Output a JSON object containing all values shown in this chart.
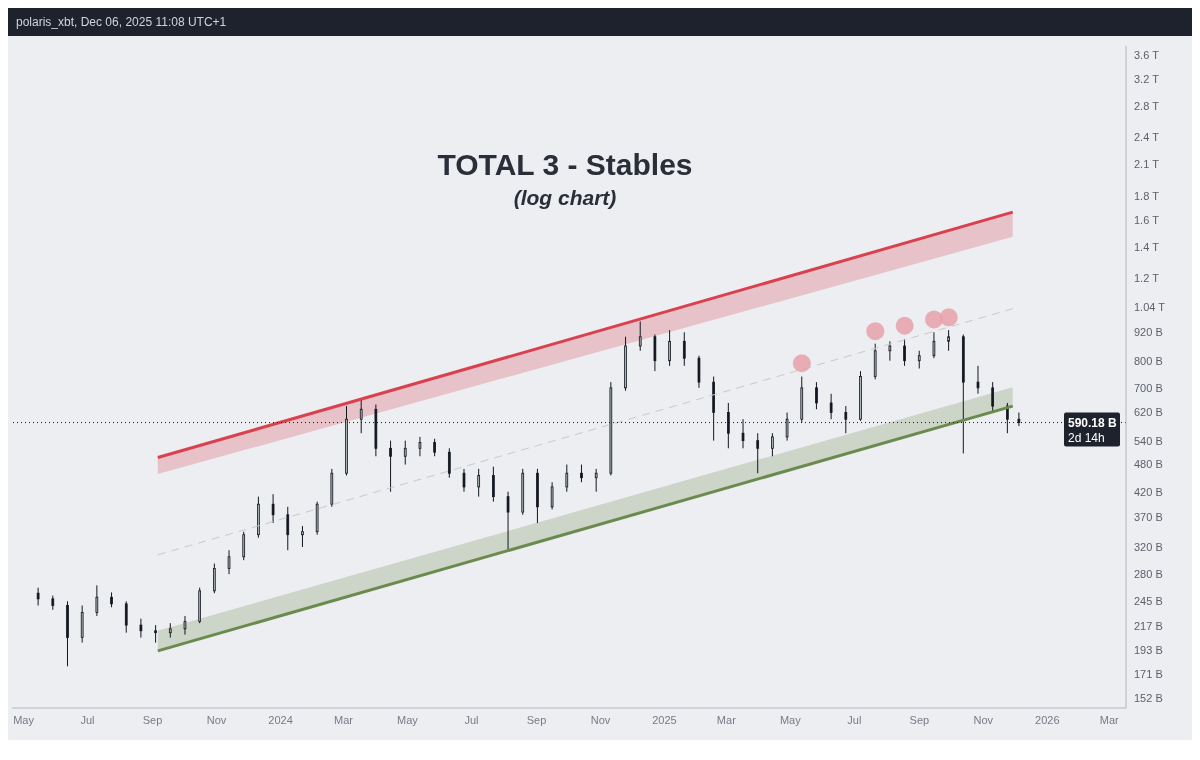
{
  "chart_data": {
    "type": "candlestick",
    "title": "TOTAL 3 - Stables",
    "subtitle": "(log chart)",
    "annotations": [
      "polaris_xbt, Dec 06, 2025 11:08 UTC+1",
      "2d 14h"
    ],
    "log": "y",
    "color": "#131722",
    "x": [
      "2023-05-15",
      "2023-05-29",
      "2023-06-12",
      "2023-06-26",
      "2023-07-10",
      "2023-07-24",
      "2023-08-07",
      "2023-08-21",
      "2023-09-04",
      "2023-09-18",
      "2023-10-02",
      "2023-10-16",
      "2023-10-30",
      "2023-11-13",
      "2023-11-27",
      "2023-12-11",
      "2023-12-25",
      "2024-01-08",
      "2024-01-22",
      "2024-02-05",
      "2024-02-19",
      "2024-03-04",
      "2024-03-18",
      "2024-04-01",
      "2024-04-15",
      "2024-04-29",
      "2024-05-13",
      "2024-05-27",
      "2024-06-10",
      "2024-06-24",
      "2024-07-08",
      "2024-07-22",
      "2024-08-05",
      "2024-08-19",
      "2024-09-02",
      "2024-09-16",
      "2024-09-30",
      "2024-10-14",
      "2024-10-28",
      "2024-11-11",
      "2024-11-25",
      "2024-12-09",
      "2024-12-23",
      "2025-01-06",
      "2025-01-20",
      "2025-02-03",
      "2025-02-17",
      "2025-03-03",
      "2025-03-17",
      "2025-03-31",
      "2025-04-14",
      "2025-04-28",
      "2025-05-12",
      "2025-05-26",
      "2025-06-09",
      "2025-06-23",
      "2025-07-07",
      "2025-07-21",
      "2025-08-04",
      "2025-08-18",
      "2025-09-01",
      "2025-09-15",
      "2025-09-29",
      "2025-10-13",
      "2025-10-27",
      "2025-11-10",
      "2025-11-24",
      "2025-12-05"
    ],
    "ohlc": [
      [
        255000000000.0,
        262000000000.0,
        240000000000.0,
        248000000000.0
      ],
      [
        248000000000.0,
        252000000000.0,
        235000000000.0,
        240000000000.0
      ],
      [
        240000000000.0,
        245000000000.0,
        178000000000.0,
        205000000000.0
      ],
      [
        205000000000.0,
        240000000000.0,
        200000000000.0,
        232000000000.0
      ],
      [
        232000000000.0,
        265000000000.0,
        228000000000.0,
        250000000000.0
      ],
      [
        250000000000.0,
        256000000000.0,
        238000000000.0,
        242000000000.0
      ],
      [
        242000000000.0,
        245000000000.0,
        210000000000.0,
        218000000000.0
      ],
      [
        218000000000.0,
        225000000000.0,
        205000000000.0,
        212000000000.0
      ],
      [
        212000000000.0,
        218000000000.0,
        200000000000.0,
        210000000000.0
      ],
      [
        210000000000.0,
        220000000000.0,
        205000000000.0,
        214000000000.0
      ],
      [
        214000000000.0,
        228000000000.0,
        208000000000.0,
        222000000000.0
      ],
      [
        222000000000.0,
        262000000000.0,
        220000000000.0,
        258000000000.0
      ],
      [
        258000000000.0,
        295000000000.0,
        255000000000.0,
        288000000000.0
      ],
      [
        288000000000.0,
        315000000000.0,
        280000000000.0,
        305000000000.0
      ],
      [
        305000000000.0,
        345000000000.0,
        300000000000.0,
        340000000000.0
      ],
      [
        340000000000.0,
        410000000000.0,
        335000000000.0,
        395000000000.0
      ],
      [
        395000000000.0,
        415000000000.0,
        360000000000.0,
        375000000000.0
      ],
      [
        375000000000.0,
        390000000000.0,
        315000000000.0,
        340000000000.0
      ],
      [
        340000000000.0,
        355000000000.0,
        320000000000.0,
        345000000000.0
      ],
      [
        345000000000.0,
        400000000000.0,
        340000000000.0,
        395000000000.0
      ],
      [
        395000000000.0,
        470000000000.0,
        390000000000.0,
        460000000000.0
      ],
      [
        460000000000.0,
        640000000000.0,
        455000000000.0,
        600000000000.0
      ],
      [
        600000000000.0,
        660000000000.0,
        560000000000.0,
        630000000000.0
      ],
      [
        630000000000.0,
        645000000000.0,
        500000000000.0,
        520000000000.0
      ],
      [
        520000000000.0,
        540000000000.0,
        420000000000.0,
        500000000000.0
      ],
      [
        500000000000.0,
        540000000000.0,
        480000000000.0,
        520000000000.0
      ],
      [
        520000000000.0,
        550000000000.0,
        500000000000.0,
        535000000000.0
      ],
      [
        535000000000.0,
        545000000000.0,
        500000000000.0,
        510000000000.0
      ],
      [
        510000000000.0,
        520000000000.0,
        450000000000.0,
        460000000000.0
      ],
      [
        460000000000.0,
        470000000000.0,
        420000000000.0,
        430000000000.0
      ],
      [
        430000000000.0,
        470000000000.0,
        410000000000.0,
        455000000000.0
      ],
      [
        455000000000.0,
        475000000000.0,
        400000000000.0,
        410000000000.0
      ],
      [
        410000000000.0,
        420000000000.0,
        316000000000.0,
        380000000000.0
      ],
      [
        380000000000.0,
        470000000000.0,
        375000000000.0,
        460000000000.0
      ],
      [
        460000000000.0,
        470000000000.0,
        360000000000.0,
        390000000000.0
      ],
      [
        390000000000.0,
        440000000000.0,
        385000000000.0,
        430000000000.0
      ],
      [
        430000000000.0,
        480000000000.0,
        420000000000.0,
        460000000000.0
      ],
      [
        460000000000.0,
        480000000000.0,
        440000000000.0,
        450000000000.0
      ],
      [
        450000000000.0,
        470000000000.0,
        420000000000.0,
        460000000000.0
      ],
      [
        460000000000.0,
        720000000000.0,
        455000000000.0,
        700000000000.0
      ],
      [
        700000000000.0,
        900000000000.0,
        690000000000.0,
        860000000000.0
      ],
      [
        860000000000.0,
        970000000000.0,
        840000000000.0,
        900000000000.0
      ],
      [
        900000000000.0,
        910000000000.0,
        760000000000.0,
        800000000000.0
      ],
      [
        800000000000.0,
        930000000000.0,
        780000000000.0,
        880000000000.0
      ],
      [
        880000000000.0,
        920000000000.0,
        780000000000.0,
        810000000000.0
      ],
      [
        810000000000.0,
        820000000000.0,
        700000000000.0,
        720000000000.0
      ],
      [
        720000000000.0,
        740000000000.0,
        540000000000.0,
        620000000000.0
      ],
      [
        620000000000.0,
        650000000000.0,
        520000000000.0,
        560000000000.0
      ],
      [
        560000000000.0,
        600000000000.0,
        520000000000.0,
        540000000000.0
      ],
      [
        540000000000.0,
        560000000000.0,
        460000000000.0,
        520000000000.0
      ],
      [
        520000000000.0,
        560000000000.0,
        500000000000.0,
        550000000000.0
      ],
      [
        550000000000.0,
        620000000000.0,
        540000000000.0,
        600000000000.0
      ],
      [
        600000000000.0,
        740000000000.0,
        590000000000.0,
        700000000000.0
      ],
      [
        700000000000.0,
        720000000000.0,
        630000000000.0,
        650000000000.0
      ],
      [
        650000000000.0,
        680000000000.0,
        600000000000.0,
        620000000000.0
      ],
      [
        620000000000.0,
        640000000000.0,
        560000000000.0,
        600000000000.0
      ],
      [
        600000000000.0,
        760000000000.0,
        595000000000.0,
        740000000000.0
      ],
      [
        740000000000.0,
        870000000000.0,
        730000000000.0,
        840000000000.0
      ],
      [
        840000000000.0,
        880000000000.0,
        800000000000.0,
        860000000000.0
      ],
      [
        860000000000.0,
        890000000000.0,
        780000000000.0,
        800000000000.0
      ],
      [
        800000000000.0,
        840000000000.0,
        770000000000.0,
        820000000000.0
      ],
      [
        820000000000.0,
        920000000000.0,
        810000000000.0,
        880000000000.0
      ],
      [
        880000000000.0,
        930000000000.0,
        840000000000.0,
        900000000000.0
      ],
      [
        900000000000.0,
        910000000000.0,
        507000000000.0,
        720000000000.0
      ],
      [
        720000000000.0,
        780000000000.0,
        680000000000.0,
        700000000000.0
      ],
      [
        700000000000.0,
        720000000000.0,
        620000000000.0,
        640000000000.0
      ],
      [
        640000000000.0,
        650000000000.0,
        560000000000.0,
        600000000000.0
      ],
      [
        600000000000.0,
        620000000000.0,
        580000000000.0,
        590180000000.0
      ]
    ],
    "series": [
      {
        "type": "line",
        "color": "#d9414f",
        "x": [
          "2023-09-06",
          "2025-11-29"
        ],
        "values": [
          497000000000.0,
          1661000000000.0
        ],
        "lower": [
          458000000000.0,
          1471000000000.0
        ],
        "upper": [
          497000000000.0,
          1661000000000.0
        ]
      },
      {
        "type": "line",
        "color": "#6b8a4e",
        "x": [
          "2023-09-06",
          "2025-11-29"
        ],
        "values": [
          192000000000.0,
          640000000000.0
        ],
        "lower": [
          192000000000.0,
          640000000000.0
        ],
        "upper": [
          212000000000.0,
          702000000000.0
        ]
      },
      {
        "type": "line",
        "color": "#c9c9cc",
        "line_style": "dashed",
        "x": [
          "2023-09-06",
          "2025-11-29"
        ],
        "values": [
          308000000000.0,
          1033000000000.0
        ]
      },
      {
        "type": "scatter",
        "color": "#e8a0aa",
        "marker": "circle",
        "x": [
          "2025-05-12",
          "2025-07-21",
          "2025-08-18",
          "2025-09-15",
          "2025-09-29"
        ],
        "values": [
          790000000000.0,
          925000000000.0,
          950000000000.0,
          980000000000.0,
          990000000000.0
        ]
      }
    ],
    "ref_lines": [
      {
        "axis": "y",
        "value": 590180000000.0,
        "label": "590.18 B",
        "line_style": "dotted",
        "color": "#131722"
      }
    ],
    "xlim": [
      "2023-04-20",
      "2026-03-17"
    ],
    "xticks": [
      {
        "value": "2023-05-01",
        "label": "May"
      },
      {
        "value": "2023-07-01",
        "label": "Jul"
      },
      {
        "value": "2023-09-01",
        "label": "Sep"
      },
      {
        "value": "2023-11-01",
        "label": "Nov"
      },
      {
        "value": "2024-01-01",
        "label": "2024"
      },
      {
        "value": "2024-03-01",
        "label": "Mar"
      },
      {
        "value": "2024-05-01",
        "label": "May"
      },
      {
        "value": "2024-07-01",
        "label": "Jul"
      },
      {
        "value": "2024-09-01",
        "label": "Sep"
      },
      {
        "value": "2024-11-01",
        "label": "Nov"
      },
      {
        "value": "2025-01-01",
        "label": "2025"
      },
      {
        "value": "2025-03-01",
        "label": "Mar"
      },
      {
        "value": "2025-05-01",
        "label": "May"
      },
      {
        "value": "2025-07-01",
        "label": "Jul"
      },
      {
        "value": "2025-09-01",
        "label": "Sep"
      },
      {
        "value": "2025-11-01",
        "label": "Nov"
      },
      {
        "value": "2026-01-01",
        "label": "2026"
      },
      {
        "value": "2026-03-01",
        "label": "Mar"
      }
    ],
    "ylim": [
      145000000000.0,
      3760000000000.0
    ],
    "yticks": [
      {
        "value": 152000000000.0,
        "label": "152 B"
      },
      {
        "value": 171000000000.0,
        "label": "171 B"
      },
      {
        "value": 193000000000.0,
        "label": "193 B"
      },
      {
        "value": 217000000000.0,
        "label": "217 B"
      },
      {
        "value": 245000000000.0,
        "label": "245 B"
      },
      {
        "value": 280000000000.0,
        "label": "280 B"
      },
      {
        "value": 320000000000.0,
        "label": "320 B"
      },
      {
        "value": 370000000000.0,
        "label": "370 B"
      },
      {
        "value": 420000000000.0,
        "label": "420 B"
      },
      {
        "value": 480000000000.0,
        "label": "480 B"
      },
      {
        "value": 540000000000.0,
        "label": "540 B"
      },
      {
        "value": 620000000000.0,
        "label": "620 B"
      },
      {
        "value": 700000000000.0,
        "label": "700 B"
      },
      {
        "value": 800000000000.0,
        "label": "800 B"
      },
      {
        "value": 920000000000.0,
        "label": "920 B"
      },
      {
        "value": 1040000000000.0,
        "label": "1.04 T"
      },
      {
        "value": 1200000000000.0,
        "label": "1.2 T"
      },
      {
        "value": 1400000000000.0,
        "label": "1.4 T"
      },
      {
        "value": 1600000000000.0,
        "label": "1.6 T"
      },
      {
        "value": 1800000000000.0,
        "label": "1.8 T"
      },
      {
        "value": 2100000000000.0,
        "label": "2.1 T"
      },
      {
        "value": 2400000000000.0,
        "label": "2.4 T"
      },
      {
        "value": 2800000000000.0,
        "label": "2.8 T"
      },
      {
        "value": 3200000000000.0,
        "label": "3.2 T"
      },
      {
        "value": 3600000000000.0,
        "label": "3.6 T"
      }
    ]
  }
}
